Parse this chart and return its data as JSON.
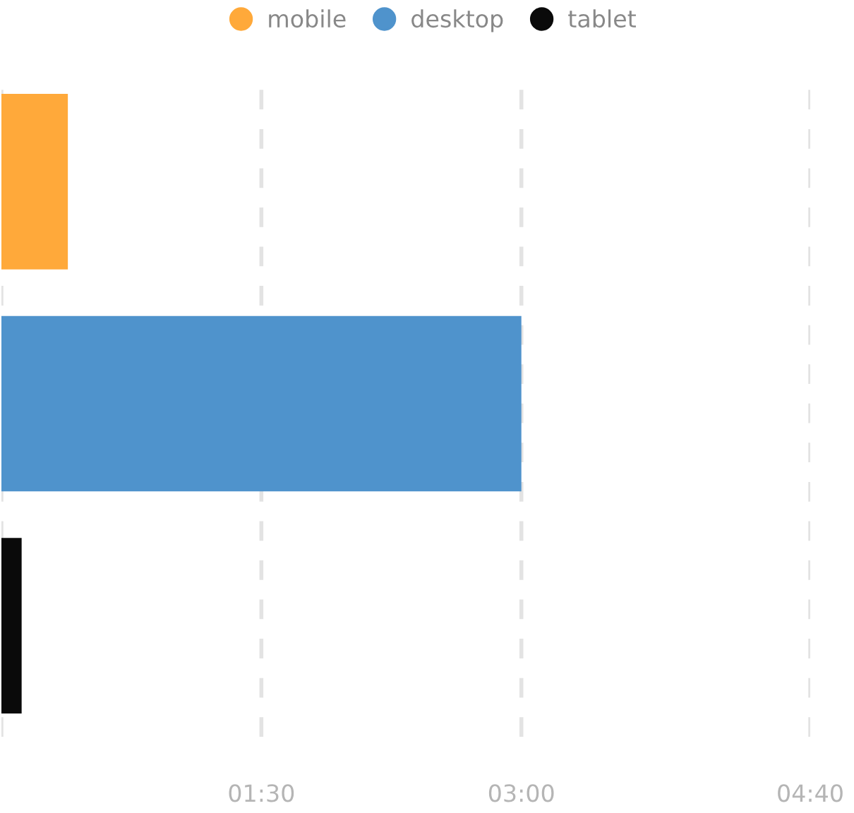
{
  "chart_data": {
    "type": "bar",
    "orientation": "horizontal",
    "categories": [
      null,
      null,
      null
    ],
    "series": [
      {
        "name": "mobile",
        "color": "#ffa93a",
        "values": [
          23,
          null,
          null
        ]
      },
      {
        "name": "desktop",
        "color": "#4f93cc",
        "values": [
          null,
          180,
          null
        ]
      },
      {
        "name": "tablet",
        "color": "#0a0a0a",
        "values": [
          null,
          null,
          7
        ]
      }
    ],
    "xlim": [
      0,
      280
    ],
    "xticks": [
      {
        "value": 0,
        "label": null
      },
      {
        "value": 90,
        "label": "01:30"
      },
      {
        "value": 180,
        "label": "03:00"
      },
      {
        "value": 280,
        "label": "04:40"
      }
    ],
    "grid": "x",
    "legend": "top"
  }
}
